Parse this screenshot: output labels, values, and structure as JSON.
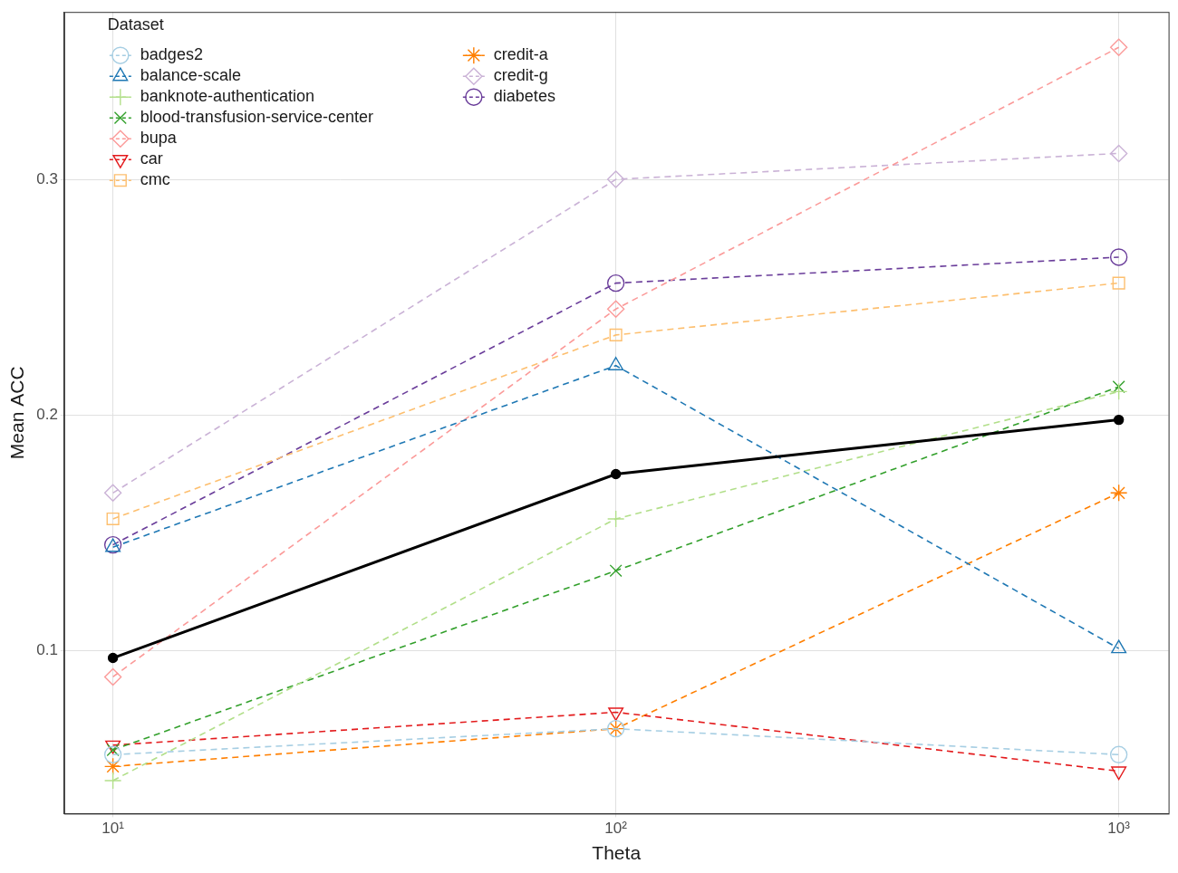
{
  "chart_data": {
    "type": "line",
    "x_label": "Theta",
    "y_label": "Mean ACC",
    "legend_title": "Dataset",
    "x": [
      10,
      100,
      1000
    ],
    "log": "x",
    "xlim": [
      8,
      1256
    ],
    "xticks": [
      {
        "value": 10,
        "label": "10¹"
      },
      {
        "value": 100,
        "label": "10²"
      },
      {
        "value": 1000,
        "label": "10³"
      }
    ],
    "ylim": [
      0.031,
      0.371
    ],
    "yticks": [
      0.1,
      0.2,
      0.3
    ],
    "grid": true,
    "legend": "top-left",
    "series": [
      {
        "name": "badges2",
        "color": "#A6CEE3",
        "marker": "circle",
        "line_style": "dashed",
        "values": [
          0.056,
          0.067,
          0.056
        ]
      },
      {
        "name": "balance-scale",
        "color": "#1F78B4",
        "marker": "triangle",
        "line_style": "dashed",
        "values": [
          0.144,
          0.221,
          0.101
        ]
      },
      {
        "name": "banknote-authentication",
        "color": "#B2DF8A",
        "marker": "plus",
        "line_style": "dashed",
        "values": [
          0.045,
          0.156,
          0.21
        ]
      },
      {
        "name": "blood-transfusion-service-center",
        "color": "#33A02C",
        "marker": "x",
        "line_style": "dashed",
        "values": [
          0.058,
          0.134,
          0.212
        ]
      },
      {
        "name": "bupa",
        "color": "#FB9A99",
        "marker": "diamond",
        "line_style": "dashed",
        "values": [
          0.089,
          0.245,
          0.356
        ]
      },
      {
        "name": "car",
        "color": "#E31A1C",
        "marker": "triangle-down",
        "line_style": "dashed",
        "values": [
          0.06,
          0.074,
          0.049
        ]
      },
      {
        "name": "cmc",
        "color": "#FDBF6F",
        "marker": "square",
        "line_style": "dashed",
        "values": [
          0.156,
          0.234,
          0.256
        ]
      },
      {
        "name": "credit-a",
        "color": "#FF7F00",
        "marker": "star",
        "line_style": "dashed",
        "values": [
          0.051,
          0.067,
          0.167
        ]
      },
      {
        "name": "credit-g",
        "color": "#CAB2D6",
        "marker": "diamond",
        "line_style": "dashed",
        "values": [
          0.167,
          0.3,
          0.311
        ]
      },
      {
        "name": "diabetes",
        "color": "#6A3D9A",
        "marker": "circle",
        "line_style": "dashed",
        "values": [
          0.145,
          0.256,
          0.267
        ]
      },
      {
        "name": null,
        "color": "#000000",
        "marker": "dot",
        "line_style": "solid",
        "values": [
          0.097,
          0.175,
          0.198
        ]
      }
    ]
  }
}
